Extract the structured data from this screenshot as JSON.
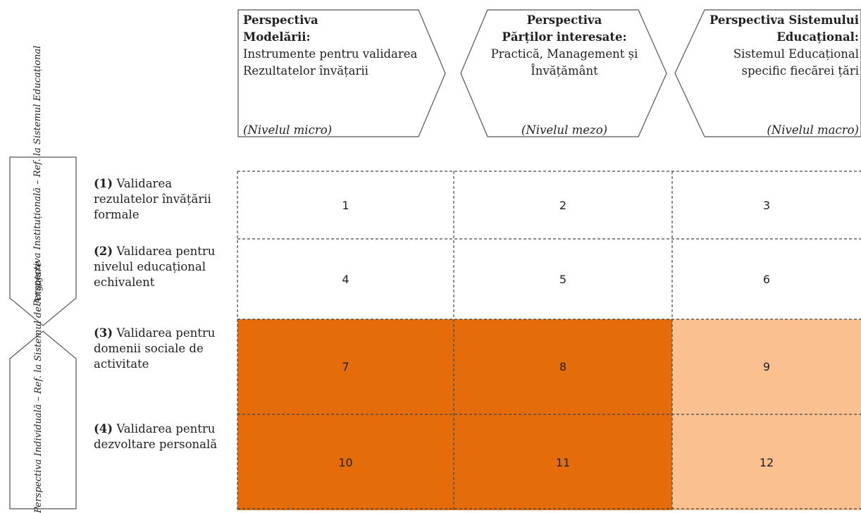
{
  "colors": {
    "dark_orange": "#e46c0a",
    "light_orange": "#fac090",
    "outline": "#555555",
    "grid": "#444444"
  },
  "header": [
    {
      "title_line1": "Perspectiva",
      "title_line2": "Modelării:",
      "description": "Instrumente pentru validarea Rezultatelor învățarii",
      "level": "(Nivelul micro)"
    },
    {
      "title_line1": "Perspectiva",
      "title_line2": "Părților interesate:",
      "description": "Practică, Management și Învățământ",
      "level": "(Nivelul mezo)"
    },
    {
      "title_line1": "Perspectiva Sistemului",
      "title_line2": "Educațional:",
      "description": "Sistemul Educațional specific fiecărei țări",
      "level": "(Nivelul macro)"
    }
  ],
  "side": [
    {
      "label": "Perspectiva Instituțională – Ref. la Sistemul Educațional"
    },
    {
      "label": "Perspectiva Individuală – Ref. la Sistemul de Angajare"
    }
  ],
  "rows": [
    {
      "number": "(1)",
      "label": "Validarea rezulatelor învățării formale"
    },
    {
      "number": "(2)",
      "label": "Validarea pentru nivelul educațional echivalent"
    },
    {
      "number": "(3)",
      "label": "Validarea pentru domenii sociale de activitate"
    },
    {
      "number": "(4)",
      "label": "Validarea pentru dezvoltare personală"
    }
  ],
  "cells": [
    "1",
    "2",
    "3",
    "4",
    "5",
    "6",
    "7",
    "8",
    "9",
    "10",
    "11",
    "12"
  ]
}
